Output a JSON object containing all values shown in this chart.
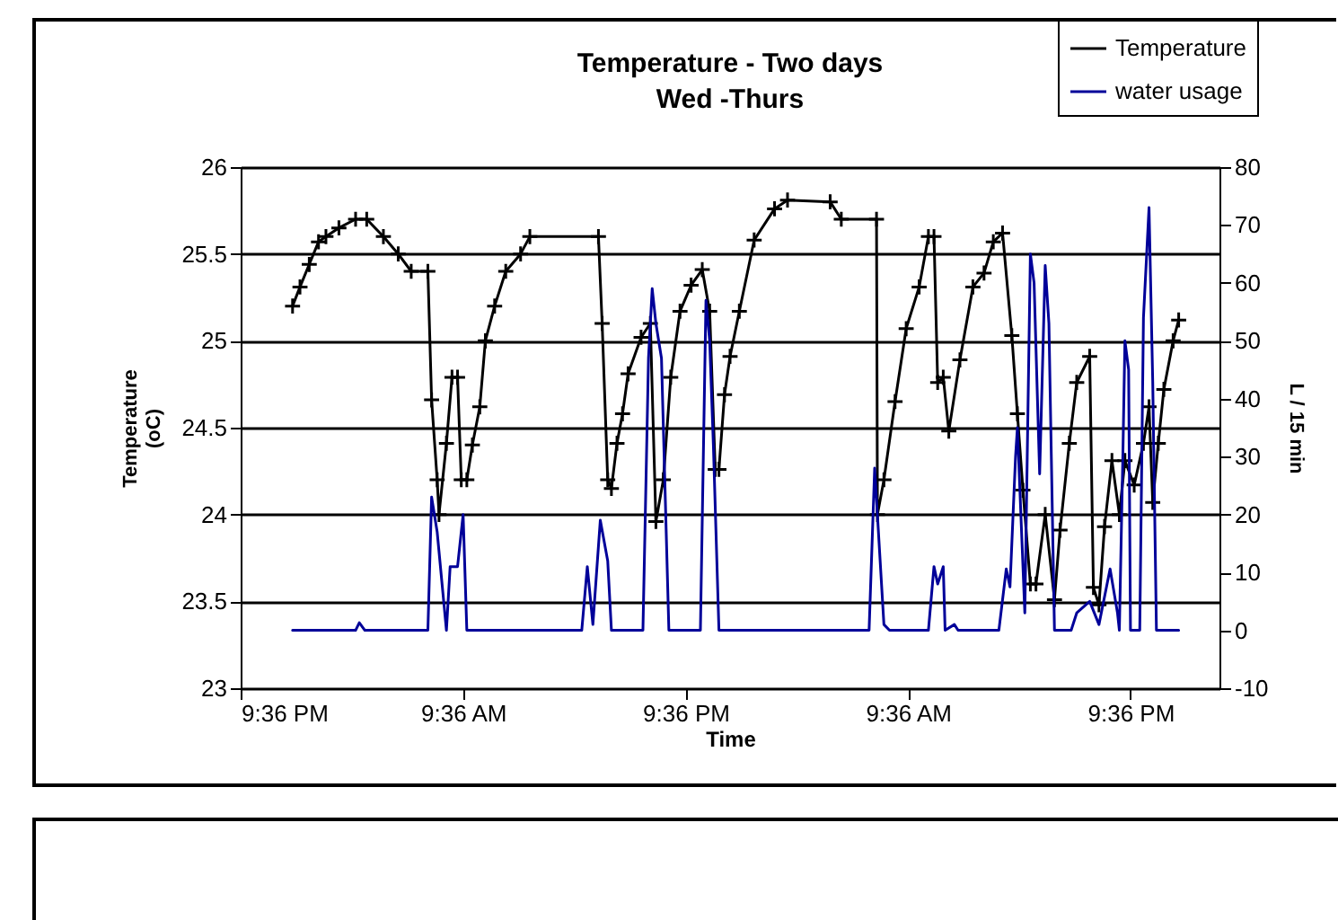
{
  "chart_data": {
    "type": "line",
    "title": "Temperature - Two days",
    "subtitle": "Wed -Thurs",
    "xlabel": "Time",
    "ylabel": "Temperature\n(oC)",
    "y2label": "L / 15 min",
    "xlim": [
      "--01-01T21:36",
      "--01-04T02:24"
    ],
    "xticks": [
      {
        "value": "--01-01T21:36",
        "label": "9:36 PM"
      },
      {
        "value": "--01-02T09:36",
        "label": "9:36 AM"
      },
      {
        "value": "--01-02T21:36",
        "label": "9:36 PM"
      },
      {
        "value": "--01-03T09:36",
        "label": "9:36 AM"
      },
      {
        "value": "--01-03T21:36",
        "label": "9:36 PM"
      }
    ],
    "ylim": [
      23,
      26
    ],
    "yticks": [
      23,
      23.5,
      24,
      24.5,
      25,
      25.5,
      26
    ],
    "y2lim": [
      -10,
      80
    ],
    "y2ticks": [
      -10,
      0,
      10,
      20,
      30,
      40,
      50,
      60,
      70,
      80
    ],
    "grid": "y",
    "legend": "top right",
    "series": [
      {
        "name": "Temperature",
        "color": "#000000",
        "marker": "cross",
        "x": [
          "--01-02T00:24",
          "--01-02T00:48",
          "--01-02T01:18",
          "--01-02T01:48",
          "--01-02T02:12",
          "--01-02T02:54",
          "--01-02T03:48",
          "--01-02T04:24",
          "--01-02T05:18",
          "--01-02T06:06",
          "--01-02T06:48",
          "--01-02T07:42",
          "--01-02T07:54",
          "--01-02T08:12",
          "--01-02T08:18",
          "--01-02T08:42",
          "--01-02T09:00",
          "--01-02T09:18",
          "--01-02T09:30",
          "--01-02T09:48",
          "--01-02T10:06",
          "--01-02T10:30",
          "--01-02T10:48",
          "--01-02T11:18",
          "--01-02T11:54",
          "--01-02T12:42",
          "--01-02T13:12",
          "--01-02T16:54",
          "--01-02T17:06",
          "--01-02T17:24",
          "--01-02T17:36",
          "--01-02T17:54",
          "--01-02T18:12",
          "--01-02T18:30",
          "--01-02T19:12",
          "--01-02T19:42",
          "--01-02T20:00",
          "--01-02T20:24",
          "--01-02T20:48",
          "--01-02T21:18",
          "--01-02T21:54",
          "--01-02T22:30",
          "--01-02T22:54",
          "--01-02T23:12",
          "--01-02T23:24",
          "--01-02T23:42",
          "--01-03T00:00",
          "--01-03T00:30",
          "--01-03T01:18",
          "--01-03T02:24",
          "--01-03T03:06",
          "--01-03T05:24",
          "--01-03T06:00",
          "--01-03T07:54",
          "--01-03T07:57",
          "--01-03T08:18",
          "--01-03T08:54",
          "--01-03T09:30",
          "--01-03T10:12",
          "--01-03T10:42",
          "--01-03T11:00",
          "--01-03T11:12",
          "--01-03T11:30",
          "--01-03T11:48",
          "--01-03T12:24",
          "--01-03T13:06",
          "--01-03T13:42",
          "--01-03T14:12",
          "--01-03T14:42",
          "--01-03T15:12",
          "--01-03T15:30",
          "--01-03T15:48",
          "--01-03T16:12",
          "--01-03T16:30",
          "--01-03T17:00",
          "--01-03T17:30",
          "--01-03T17:48",
          "--01-03T18:18",
          "--01-03T18:42",
          "--01-03T19:24",
          "--01-03T19:36",
          "--01-03T19:54",
          "--01-03T20:12",
          "--01-03T20:36",
          "--01-03T21:00",
          "--01-03T21:18",
          "--01-03T21:48",
          "--01-03T22:18",
          "--01-03T22:36",
          "--01-03T22:48",
          "--01-03T23:06",
          "--01-03T23:24",
          "--01-03T23:54",
          "--01-04T00:12"
        ],
        "values": [
          25.2,
          25.31,
          25.44,
          25.57,
          25.6,
          25.65,
          25.7,
          25.7,
          25.6,
          25.5,
          25.4,
          25.4,
          24.66,
          24.2,
          24.0,
          24.41,
          24.79,
          24.79,
          24.2,
          24.2,
          24.4,
          24.62,
          25.0,
          25.2,
          25.4,
          25.5,
          25.6,
          25.6,
          25.1,
          24.2,
          24.15,
          24.41,
          24.58,
          24.81,
          25.02,
          25.1,
          23.96,
          24.2,
          24.79,
          25.17,
          25.32,
          25.41,
          25.17,
          24.26,
          24.26,
          24.69,
          24.91,
          25.17,
          25.58,
          25.76,
          25.81,
          25.8,
          25.7,
          25.7,
          24.0,
          24.2,
          24.65,
          25.07,
          25.31,
          25.6,
          25.6,
          24.76,
          24.79,
          24.48,
          24.89,
          25.31,
          25.39,
          25.57,
          25.62,
          25.03,
          24.58,
          24.14,
          23.6,
          23.6,
          24.0,
          23.51,
          23.91,
          24.41,
          24.76,
          24.91,
          23.58,
          23.48,
          23.93,
          24.31,
          24.0,
          24.31,
          24.17,
          24.41,
          24.62,
          24.07,
          24.41,
          24.72,
          25.0,
          25.12
        ]
      },
      {
        "name": "water usage",
        "color": "#000099",
        "axis": "y2",
        "x": [
          "--01-02T00:24",
          "--01-02T03:48",
          "--01-02T04:00",
          "--01-02T04:18",
          "--01-02T07:42",
          "--01-02T07:54",
          "--01-02T08:12",
          "--01-02T08:42",
          "--01-02T08:54",
          "--01-02T09:18",
          "--01-02T09:36",
          "--01-02T09:48",
          "--01-02T16:00",
          "--01-02T16:18",
          "--01-02T16:36",
          "--01-02T17:00",
          "--01-02T17:24",
          "--01-02T17:36",
          "--01-02T19:18",
          "--01-02T19:36",
          "--01-02T19:48",
          "--01-02T20:00",
          "--01-02T20:18",
          "--01-02T20:42",
          "--01-02T22:24",
          "--01-02T22:42",
          "--01-02T22:54",
          "--01-02T23:06",
          "--01-02T23:24",
          "--01-03T07:30",
          "--01-03T07:48",
          "--01-03T08:18",
          "--01-03T08:36",
          "--01-03T10:42",
          "--01-03T11:00",
          "--01-03T11:12",
          "--01-03T11:30",
          "--01-03T11:36",
          "--01-03T12:06",
          "--01-03T12:18",
          "--01-03T14:30",
          "--01-03T14:54",
          "--01-03T15:06",
          "--01-03T15:24",
          "--01-03T15:30",
          "--01-03T15:54",
          "--01-03T16:12",
          "--01-03T16:24",
          "--01-03T16:42",
          "--01-03T17:00",
          "--01-03T17:12",
          "--01-03T17:30",
          "--01-03T18:24",
          "--01-03T18:42",
          "--01-03T19:24",
          "--01-03T19:54",
          "--01-03T20:30",
          "--01-03T20:54",
          "--01-03T21:00",
          "--01-03T21:12",
          "--01-03T21:18",
          "--01-03T21:30",
          "--01-03T21:36",
          "--01-03T22:06",
          "--01-03T22:18",
          "--01-03T22:36",
          "--01-03T22:48",
          "--01-03T23:00",
          "--01-04T00:12"
        ],
        "values": [
          0,
          0,
          1.3,
          0,
          0,
          23,
          17,
          0,
          11,
          11,
          20,
          0,
          0,
          11,
          1,
          19,
          12,
          0,
          0,
          47,
          59,
          53,
          47,
          0,
          0,
          57,
          50,
          32,
          0,
          0,
          28,
          1,
          0,
          0,
          11,
          8,
          11,
          0,
          1,
          0,
          0,
          10.6,
          7.5,
          30,
          35,
          3,
          65,
          60,
          27,
          63,
          53,
          0,
          0,
          3,
          5,
          1,
          10.6,
          3,
          0,
          32,
          50,
          45,
          0,
          0,
          54,
          73,
          43,
          0,
          0
        ]
      }
    ]
  }
}
